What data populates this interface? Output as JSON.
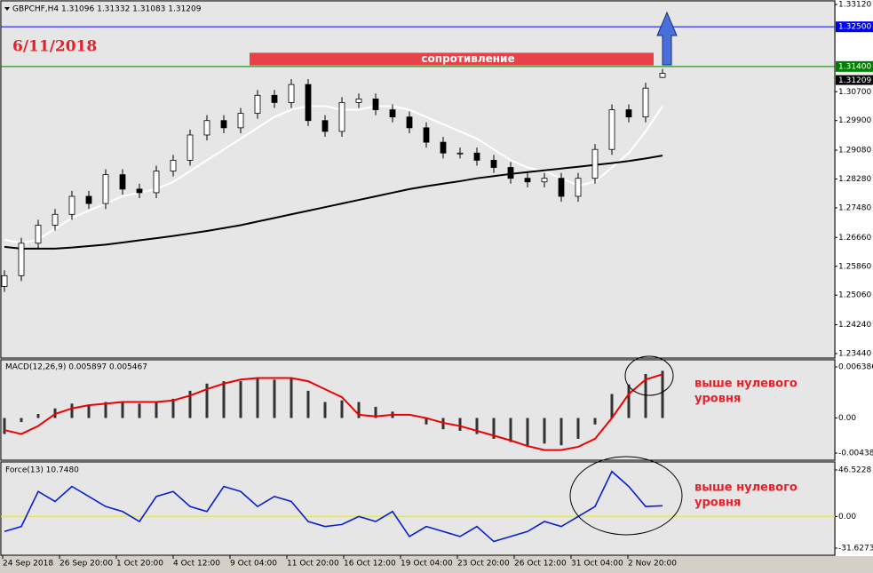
{
  "chart_data": [
    {
      "type": "candlestick",
      "title": "GBPCHF,H4  1.31096 1.31332 1.31083 1.31209",
      "date_label": "6/11/2018",
      "resistance_zone": {
        "label": "сопротивление",
        "top": 1.3178,
        "bottom": 1.3143,
        "color": "#e8414a"
      },
      "ylim": [
        1.2344,
        1.3312
      ],
      "yticks": [
        {
          "value": 1.3312,
          "label": "1.33120"
        },
        {
          "value": 1.307,
          "label": "1.30700"
        },
        {
          "value": 1.299,
          "label": "1.29900"
        },
        {
          "value": 1.2908,
          "label": "1.29080"
        },
        {
          "value": 1.2828,
          "label": "1.28280"
        },
        {
          "value": 1.2748,
          "label": "1.27480"
        },
        {
          "value": 1.2666,
          "label": "1.26660"
        },
        {
          "value": 1.2586,
          "label": "1.25860"
        },
        {
          "value": 1.2506,
          "label": "1.25060"
        },
        {
          "value": 1.2424,
          "label": "1.24240"
        },
        {
          "value": 1.2344,
          "label": "1.23440"
        }
      ],
      "levels": [
        {
          "value": 1.325,
          "label": "1.32500",
          "color": "#0000ff"
        },
        {
          "value": 1.314,
          "label": "1.31400",
          "color": "#008000"
        }
      ],
      "last_price": {
        "value": 1.31209,
        "label": "1.31209",
        "color": "#000000"
      },
      "open": [
        1.253,
        1.256,
        1.265,
        1.27,
        1.273,
        1.278,
        1.276,
        1.284,
        1.28,
        1.279,
        1.285,
        1.288,
        1.295,
        1.299,
        1.297,
        1.301,
        1.306,
        1.304,
        1.309,
        1.299,
        1.296,
        1.304,
        1.305,
        1.302,
        1.3,
        1.297,
        1.293,
        1.29,
        1.29,
        1.288,
        1.286,
        1.283,
        1.282,
        1.283,
        1.278,
        1.283,
        1.291,
        1.302,
        1.3,
        1.31096
      ],
      "high": [
        1.2575,
        1.2665,
        1.2715,
        1.2745,
        1.2795,
        1.2795,
        1.2855,
        1.2855,
        1.2815,
        1.2865,
        1.2895,
        1.2965,
        1.3005,
        1.3005,
        1.3025,
        1.3075,
        1.3075,
        1.3105,
        1.3105,
        1.3005,
        1.3055,
        1.3065,
        1.3065,
        1.3035,
        1.3015,
        1.2985,
        1.2945,
        1.2915,
        1.2915,
        1.2895,
        1.2875,
        1.2845,
        1.2845,
        1.2845,
        1.2845,
        1.2925,
        1.3035,
        1.3035,
        1.3095,
        1.31332
      ],
      "low": [
        1.2515,
        1.2545,
        1.2635,
        1.2685,
        1.2715,
        1.2745,
        1.2745,
        1.2785,
        1.2775,
        1.2775,
        1.2835,
        1.2865,
        1.2935,
        1.2955,
        1.2955,
        1.2995,
        1.3025,
        1.3025,
        1.2975,
        1.2945,
        1.2945,
        1.3025,
        1.3005,
        1.2985,
        1.2955,
        1.2915,
        1.2885,
        1.2885,
        1.2865,
        1.2845,
        1.2815,
        1.2805,
        1.2805,
        1.2765,
        1.2765,
        1.2815,
        1.2895,
        1.2985,
        1.2985,
        1.31083
      ],
      "close": [
        1.256,
        1.265,
        1.27,
        1.273,
        1.278,
        1.276,
        1.284,
        1.28,
        1.279,
        1.285,
        1.288,
        1.295,
        1.299,
        1.297,
        1.301,
        1.306,
        1.304,
        1.309,
        1.299,
        1.296,
        1.304,
        1.305,
        1.302,
        1.3,
        1.297,
        1.293,
        1.29,
        1.29,
        1.288,
        1.286,
        1.283,
        1.282,
        1.283,
        1.278,
        1.283,
        1.291,
        1.302,
        1.3,
        1.308,
        1.31209
      ],
      "series": [
        {
          "color": "#ffffff",
          "values": [
            1.266,
            1.265,
            1.266,
            1.269,
            1.272,
            1.274,
            1.276,
            1.278,
            1.279,
            1.28,
            1.282,
            1.285,
            1.288,
            1.291,
            1.294,
            1.297,
            1.3,
            1.302,
            1.303,
            1.303,
            1.302,
            1.302,
            1.303,
            1.303,
            1.302,
            1.3,
            1.298,
            1.296,
            1.294,
            1.291,
            1.288,
            1.286,
            1.285,
            1.283,
            1.281,
            1.282,
            1.286,
            1.29,
            1.296,
            1.303
          ]
        },
        {
          "color": "#000000",
          "values": [
            1.264,
            1.2635,
            1.2635,
            1.2635,
            1.2638,
            1.2642,
            1.2646,
            1.2652,
            1.2658,
            1.2664,
            1.267,
            1.2677,
            1.2684,
            1.2692,
            1.27,
            1.271,
            1.272,
            1.273,
            1.274,
            1.275,
            1.276,
            1.277,
            1.278,
            1.279,
            1.28,
            1.2808,
            1.2815,
            1.2822,
            1.283,
            1.2836,
            1.2842,
            1.2847,
            1.2852,
            1.2857,
            1.2862,
            1.2867,
            1.2872,
            1.2878,
            1.2885,
            1.2893
          ]
        }
      ]
    },
    {
      "type": "macd",
      "title": "MACD(12,26,9) 0.005897 0.005467",
      "annotation": [
        "выше нулевого",
        "уровня"
      ],
      "annotation_color": "#e8202a",
      "ylim": [
        -0.00438,
        0.006386
      ],
      "yticks": [
        0.006386,
        {
          "value": 0,
          "label": "0.00"
        },
        -0.00438
      ],
      "histogram": {
        "color": "#333333",
        "values": [
          -0.002,
          -0.0005,
          0.0005,
          0.0012,
          0.0018,
          0.0016,
          0.002,
          0.002,
          0.0018,
          0.002,
          0.0024,
          0.0034,
          0.0043,
          0.0046,
          0.0046,
          0.005,
          0.0048,
          0.005,
          0.0034,
          0.002,
          0.0022,
          0.002,
          0.0014,
          0.0008,
          0.0,
          -0.0008,
          -0.0014,
          -0.0016,
          -0.002,
          -0.0026,
          -0.003,
          -0.0034,
          -0.0032,
          -0.0034,
          -0.0026,
          -0.0008,
          0.003,
          0.0042,
          0.0055,
          0.005897
        ]
      },
      "signal": {
        "color": "#ee0000",
        "values": [
          -0.0015,
          -0.002,
          -0.001,
          0.0005,
          0.0012,
          0.0016,
          0.0018,
          0.002,
          0.002,
          0.002,
          0.0022,
          0.0028,
          0.0036,
          0.0043,
          0.0048,
          0.005,
          0.005,
          0.005,
          0.0046,
          0.0036,
          0.0026,
          0.0004,
          0.0002,
          0.0004,
          0.0004,
          0.0,
          -0.0006,
          -0.001,
          -0.0016,
          -0.0022,
          -0.0028,
          -0.0035,
          -0.004,
          -0.004,
          -0.0036,
          -0.0026,
          0.0,
          0.003,
          0.0048,
          0.005467
        ]
      }
    },
    {
      "type": "line",
      "title": "Force(13) 10.7480",
      "annotation": [
        "выше нулевого",
        "уровня"
      ],
      "annotation_color": "#e8202a",
      "ylim": [
        -31.6273,
        46.5228
      ],
      "yticks": [
        46.5228,
        {
          "value": 0,
          "label": "0.00"
        },
        -31.6273
      ],
      "zero_color": "#f0f000",
      "color": "#0a1ed2",
      "values": [
        -15,
        -10,
        25,
        15,
        30,
        20,
        10,
        5,
        -5,
        20,
        25,
        10,
        5,
        30,
        25,
        10,
        20,
        15,
        -5,
        -10,
        -8,
        0,
        -5,
        5,
        -20,
        -10,
        -15,
        -20,
        -10,
        -25,
        -20,
        -15,
        -5,
        -10,
        0,
        10,
        45,
        30,
        10,
        10.748
      ],
      "x_labels": [
        "24 Sep 2018",
        "26 Sep 20:00",
        "1 Oct 20:00",
        "4 Oct 12:00",
        "9 Oct 04:00",
        "11 Oct 20:00",
        "16 Oct 12:00",
        "19 Oct 04:00",
        "23 Oct 20:00",
        "26 Oct 12:00",
        "31 Oct 04:00",
        "2 Nov 20:00"
      ]
    }
  ]
}
